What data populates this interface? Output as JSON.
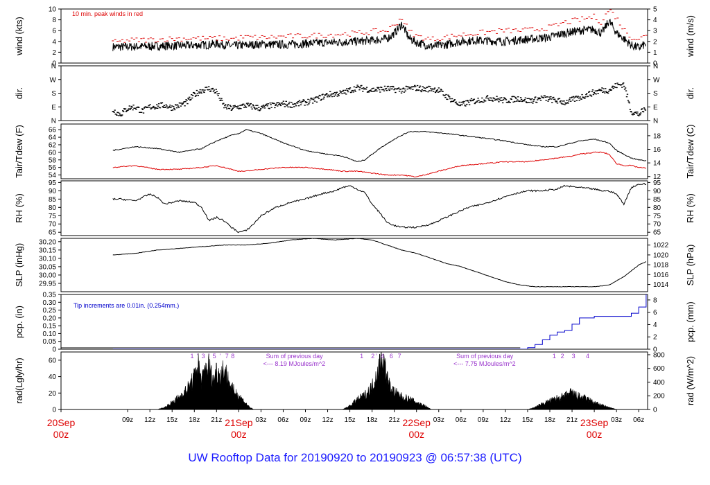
{
  "title": "UW Rooftop Data for 20190920  to  20190923 @ 06:57:38  (UTC)",
  "colors": {
    "series": "#000000",
    "peak": "#dd0000",
    "dew": "#dd0000",
    "precip": "#0000cc",
    "note_blue": "#0000cc",
    "note_purple": "#9933cc",
    "day": "#dd0000",
    "title": "#1a1aff"
  },
  "x_axis": {
    "hour_ticks": [
      {
        "t": 9,
        "label": "09z"
      },
      {
        "t": 12,
        "label": "12z"
      },
      {
        "t": 15,
        "label": "15z"
      },
      {
        "t": 18,
        "label": "18z"
      },
      {
        "t": 21,
        "label": "21z"
      },
      {
        "t": 27,
        "label": "03z"
      },
      {
        "t": 30,
        "label": "06z"
      },
      {
        "t": 33,
        "label": "09z"
      },
      {
        "t": 36,
        "label": "12z"
      },
      {
        "t": 39,
        "label": "15z"
      },
      {
        "t": 42,
        "label": "18z"
      },
      {
        "t": 45,
        "label": "21z"
      },
      {
        "t": 51,
        "label": "03z"
      },
      {
        "t": 54,
        "label": "06z"
      },
      {
        "t": 57,
        "label": "09z"
      },
      {
        "t": 60,
        "label": "12z"
      },
      {
        "t": 63,
        "label": "15z"
      },
      {
        "t": 66,
        "label": "18z"
      },
      {
        "t": 69,
        "label": "21z"
      },
      {
        "t": 75,
        "label": "03z"
      },
      {
        "t": 78,
        "label": "06z"
      }
    ],
    "day_ticks": [
      {
        "t": 0,
        "day": "20Sep",
        "hour": "00z"
      },
      {
        "t": 24,
        "day": "21Sep",
        "hour": "00z"
      },
      {
        "t": 48,
        "day": "22Sep",
        "hour": "00z"
      },
      {
        "t": 72,
        "day": "23Sep",
        "hour": "00z"
      }
    ]
  },
  "chart_data": [
    {
      "panel": "wind",
      "type": "line",
      "ylabel_left": "wind (kts)",
      "ylabel_right": "wind (m/s)",
      "ylim": [
        0,
        10
      ],
      "yticks_left": [
        "0",
        "2",
        "4",
        "6",
        "8",
        "10"
      ],
      "yticks_right": [
        "0",
        "1",
        "2",
        "3",
        "4",
        "5"
      ],
      "annotation": "10 min. peak winds in red",
      "series": [
        {
          "x": [
            7,
            9,
            12,
            15,
            18,
            20,
            21,
            23,
            25,
            27,
            30,
            33,
            36,
            38,
            40,
            42,
            44,
            45,
            46,
            47,
            48,
            50,
            52,
            54,
            56,
            58,
            60,
            62,
            64,
            66,
            67,
            68,
            70,
            72,
            73,
            74,
            75,
            76,
            77,
            78,
            79
          ],
          "y": [
            3.0,
            3.0,
            3.1,
            3.2,
            3.3,
            3.4,
            3.6,
            3.2,
            3.3,
            3.5,
            3.4,
            3.6,
            3.8,
            3.9,
            4.0,
            4.2,
            4.5,
            5.5,
            7.2,
            4.6,
            3.8,
            3.1,
            3.4,
            4.0,
            4.2,
            4.1,
            4.0,
            4.3,
            4.5,
            4.8,
            5.2,
            5.5,
            6.0,
            6.2,
            5.5,
            7.8,
            5.6,
            4.5,
            3.3,
            2.8,
            3.6
          ]
        },
        {
          "x": [
            7,
            9,
            12,
            15,
            18,
            20,
            21,
            23,
            25,
            27,
            30,
            33,
            36,
            38,
            40,
            42,
            44,
            45,
            46,
            47,
            48,
            50,
            52,
            54,
            56,
            58,
            60,
            62,
            64,
            66,
            67,
            68,
            70,
            72,
            73,
            74,
            75,
            76,
            77,
            78,
            79
          ],
          "y": [
            3.8,
            4.2,
            4.3,
            4.5,
            4.6,
            4.5,
            4.6,
            4.5,
            4.8,
            4.7,
            4.9,
            5.0,
            5.2,
            5.4,
            5.5,
            5.8,
            6.0,
            7.0,
            8.4,
            6.0,
            5.0,
            4.4,
            4.8,
            5.2,
            5.5,
            5.8,
            6.0,
            6.0,
            6.2,
            6.6,
            7.0,
            7.5,
            8.0,
            8.6,
            7.5,
            10.0,
            8.4,
            6.2,
            4.8,
            4.5,
            5.0
          ]
        }
      ]
    },
    {
      "panel": "dir",
      "type": "scatter",
      "ylabel_left": "dir.",
      "ylabel_right": "dir.",
      "ylim": [
        0,
        360
      ],
      "yticks_left": [
        "N",
        "E",
        "S",
        "W",
        "N"
      ],
      "yticks_right": [
        "N",
        "E",
        "S",
        "W",
        "N"
      ],
      "series": [
        {
          "x": [
            7,
            8,
            9,
            10,
            11,
            12,
            13,
            14,
            15,
            16,
            17,
            18,
            19,
            20,
            21,
            22,
            23,
            24,
            25,
            26,
            27,
            28,
            29,
            30,
            31,
            32,
            33,
            34,
            35,
            36,
            37,
            38,
            39,
            40,
            41,
            42,
            43,
            44,
            45,
            46,
            47,
            48,
            49,
            50,
            51,
            52,
            53,
            54,
            55,
            56,
            57,
            58,
            59,
            60,
            61,
            62,
            63,
            64,
            65,
            66,
            67,
            68,
            69,
            70,
            71,
            72,
            73,
            74,
            75,
            76,
            77,
            78,
            79
          ],
          "y": [
            70,
            40,
            80,
            90,
            60,
            90,
            95,
            100,
            85,
            100,
            120,
            170,
            200,
            210,
            190,
            95,
            80,
            90,
            100,
            90,
            80,
            95,
            100,
            110,
            105,
            110,
            120,
            130,
            150,
            170,
            175,
            180,
            200,
            215,
            210,
            200,
            205,
            210,
            205,
            200,
            210,
            215,
            205,
            210,
            200,
            160,
            130,
            100,
            120,
            130,
            140,
            150,
            140,
            130,
            140,
            145,
            130,
            135,
            150,
            140,
            130,
            120,
            135,
            150,
            170,
            185,
            200,
            200,
            230,
            240,
            60,
            40,
            80
          ]
        }
      ]
    },
    {
      "panel": "temp",
      "type": "line",
      "ylabel_left": "Tair/Tdew (F)",
      "ylabel_right": "Tair/Tdew (C)",
      "ylim": [
        53,
        67.5
      ],
      "yticks_left": [
        "54",
        "56",
        "58",
        "60",
        "62",
        "64",
        "66"
      ],
      "yticks_right": [
        "12",
        "14",
        "16",
        "18"
      ],
      "series": [
        {
          "name": "Tair",
          "x": [
            7,
            10,
            13,
            16,
            19,
            21,
            23,
            24,
            25,
            27,
            30,
            33,
            36,
            38,
            40,
            41,
            43,
            45,
            47,
            49,
            52,
            54,
            57,
            60,
            63,
            65,
            67,
            69,
            70,
            72,
            73,
            74,
            75,
            76,
            77,
            78,
            79
          ],
          "y": [
            60.5,
            61.5,
            61.0,
            60.0,
            61.0,
            63.0,
            64.5,
            65.0,
            66.0,
            65.0,
            62.5,
            60.5,
            59.5,
            59.0,
            57.5,
            58.0,
            61.0,
            63.5,
            65.5,
            65.5,
            65.0,
            64.5,
            63.8,
            63.0,
            62.0,
            61.5,
            61.5,
            62.5,
            63.0,
            63.5,
            63.0,
            62.5,
            60.5,
            59.5,
            58.5,
            58.0,
            57.8
          ]
        },
        {
          "name": "Tdew",
          "x": [
            7,
            10,
            13,
            16,
            19,
            21,
            23,
            24,
            25,
            27,
            30,
            33,
            36,
            38,
            40,
            42,
            44,
            46,
            48,
            50,
            52,
            54,
            57,
            60,
            63,
            65,
            67,
            69,
            70,
            72,
            73,
            74,
            75,
            76,
            77,
            78,
            79
          ],
          "y": [
            56.0,
            56.5,
            55.5,
            55.5,
            56.0,
            56.5,
            55.5,
            55.0,
            55.0,
            55.5,
            56.0,
            56.0,
            55.5,
            55.0,
            55.0,
            54.5,
            54.0,
            54.0,
            53.5,
            54.5,
            55.5,
            56.5,
            57.0,
            57.5,
            57.5,
            58.0,
            58.5,
            59.0,
            59.5,
            60.0,
            60.0,
            59.5,
            57.0,
            56.5,
            56.5,
            56.0,
            55.8
          ]
        }
      ]
    },
    {
      "panel": "rh",
      "type": "line",
      "ylabel_left": "RH (%)",
      "ylabel_right": "RH (%)",
      "ylim": [
        63,
        96
      ],
      "yticks_left": [
        "65",
        "70",
        "75",
        "80",
        "85",
        "90",
        "95"
      ],
      "yticks_right": [
        "65",
        "70",
        "75",
        "80",
        "85",
        "90",
        "95"
      ],
      "series": [
        {
          "x": [
            7,
            8,
            10,
            12,
            13,
            14,
            16,
            18,
            19,
            20,
            21,
            22,
            23,
            24,
            25,
            26,
            27,
            29,
            31,
            33,
            35,
            37,
            38,
            39,
            40,
            41,
            42,
            43,
            44,
            45,
            46,
            47,
            48,
            49,
            50,
            51,
            53,
            55,
            57,
            59,
            61,
            63,
            65,
            67,
            68,
            70,
            72,
            73,
            74,
            74.5,
            75,
            76,
            77,
            78,
            79
          ],
          "y": [
            85,
            85,
            84,
            88,
            86,
            82,
            84,
            83,
            80,
            72,
            74,
            72,
            68,
            65,
            66,
            70,
            75,
            80,
            83,
            85,
            88,
            90,
            92,
            93,
            91,
            89,
            82,
            77,
            71,
            69,
            68,
            68,
            68,
            69,
            70,
            72,
            76,
            80,
            82,
            85,
            88,
            90,
            90,
            91,
            93,
            92,
            91,
            90,
            90,
            89,
            88,
            82,
            92,
            94,
            94
          ]
        }
      ]
    },
    {
      "panel": "slp",
      "type": "line",
      "ylabel_left": "SLP (inHg)",
      "ylabel_right": "SLP (hPa)",
      "ylim": [
        29.9,
        30.22
      ],
      "yticks_left": [
        "29.95",
        "30.00",
        "30.05",
        "30.10",
        "30.15",
        "30.20"
      ],
      "yticks_right": [
        "1014",
        "1016",
        "1018",
        "1020",
        "1022"
      ],
      "series": [
        {
          "x": [
            7,
            10,
            13,
            16,
            19,
            22,
            25,
            28,
            31,
            34,
            37,
            40,
            42,
            44,
            46,
            48,
            50,
            52,
            54,
            56,
            58,
            60,
            62,
            64,
            66,
            68,
            70,
            72,
            74,
            76,
            78,
            79
          ],
          "y": [
            30.12,
            30.13,
            30.15,
            30.16,
            30.17,
            30.18,
            30.18,
            30.19,
            30.21,
            30.22,
            30.21,
            30.22,
            30.21,
            30.18,
            30.15,
            30.13,
            30.1,
            30.07,
            30.05,
            30.02,
            29.99,
            29.96,
            29.94,
            29.93,
            29.93,
            29.93,
            29.93,
            29.93,
            29.94,
            29.99,
            30.06,
            30.08
          ]
        }
      ]
    },
    {
      "panel": "pcp",
      "type": "line",
      "ylabel_left": "pcp. (in)",
      "ylabel_right": "pcp. (mm)",
      "ylim": [
        0,
        0.35
      ],
      "yticks_left": [
        "0",
        "0.05",
        "0.10",
        "0.15",
        "0.20",
        "0.25",
        "0.30",
        "0.35"
      ],
      "yticks_right": [
        "0",
        "2",
        "4",
        "6",
        "8"
      ],
      "annotation": "Tip increments are 0.01in. (0.254mm.)",
      "series": [
        {
          "x": [
            7,
            62,
            63,
            64,
            65,
            66,
            67,
            68,
            69,
            70,
            72,
            74,
            75,
            76,
            77,
            78,
            79
          ],
          "y": [
            0,
            0,
            0.01,
            0.03,
            0.06,
            0.09,
            0.11,
            0.12,
            0.16,
            0.2,
            0.21,
            0.21,
            0.21,
            0.21,
            0.23,
            0.27,
            0.35
          ]
        }
      ]
    },
    {
      "panel": "rad",
      "type": "area",
      "ylabel_left": "rad(Lgly/hr)",
      "ylabel_right": "rad (W/m^2)",
      "ylim": [
        0,
        70
      ],
      "yticks_left": [
        "0",
        "20",
        "40",
        "60"
      ],
      "yticks_right": [
        "0",
        "200",
        "400",
        "600",
        "800"
      ],
      "annotations": [
        {
          "text": "Sum of previous day",
          "line2": "<--- 8.19 MJoules/m^2"
        },
        {
          "text": "Sum of previous day",
          "line2": "<--- 7.75 MJoules/m^2"
        }
      ],
      "hour_markers": [
        {
          "t": 17.7,
          "label": "1"
        },
        {
          "t": 18.4,
          "label": "'"
        },
        {
          "t": 19.2,
          "label": "3"
        },
        {
          "t": 20.0,
          "label": "'"
        },
        {
          "t": 20.7,
          "label": "5"
        },
        {
          "t": 21.5,
          "label": "'"
        },
        {
          "t": 22.4,
          "label": "7"
        },
        {
          "t": 23.2,
          "label": "8"
        },
        {
          "t": 40.6,
          "label": "1"
        },
        {
          "t": 42.1,
          "label": "2"
        },
        {
          "t": 42.6,
          "label": "'"
        },
        {
          "t": 43.4,
          "label": "4"
        },
        {
          "t": 44.6,
          "label": "6"
        },
        {
          "t": 45.7,
          "label": "7"
        },
        {
          "t": 66.6,
          "label": "1"
        },
        {
          "t": 67.7,
          "label": "2"
        },
        {
          "t": 69.2,
          "label": "3"
        },
        {
          "t": 71.1,
          "label": "4"
        }
      ],
      "series": [
        {
          "x": [
            13,
            14,
            15,
            16,
            17,
            18,
            18.5,
            19,
            19.5,
            20,
            20.5,
            21,
            21.5,
            22,
            22.5,
            23,
            24,
            25,
            25.5,
            26,
            38,
            39,
            40,
            41,
            42,
            42.5,
            43,
            43.5,
            44,
            44.5,
            45,
            46,
            47,
            48,
            49,
            49.5,
            50,
            63,
            64,
            65,
            66,
            67,
            68,
            68.5,
            69,
            69.5,
            70,
            71,
            72,
            73,
            74,
            75
          ],
          "y": [
            0,
            3,
            10,
            18,
            28,
            45,
            66,
            40,
            58,
            62,
            40,
            55,
            48,
            60,
            45,
            30,
            20,
            8,
            3,
            0,
            0,
            5,
            14,
            20,
            32,
            48,
            62,
            75,
            45,
            30,
            25,
            18,
            15,
            10,
            6,
            3,
            0,
            0,
            3,
            8,
            12,
            16,
            18,
            22,
            24,
            20,
            18,
            15,
            10,
            6,
            3,
            0
          ]
        }
      ]
    }
  ]
}
